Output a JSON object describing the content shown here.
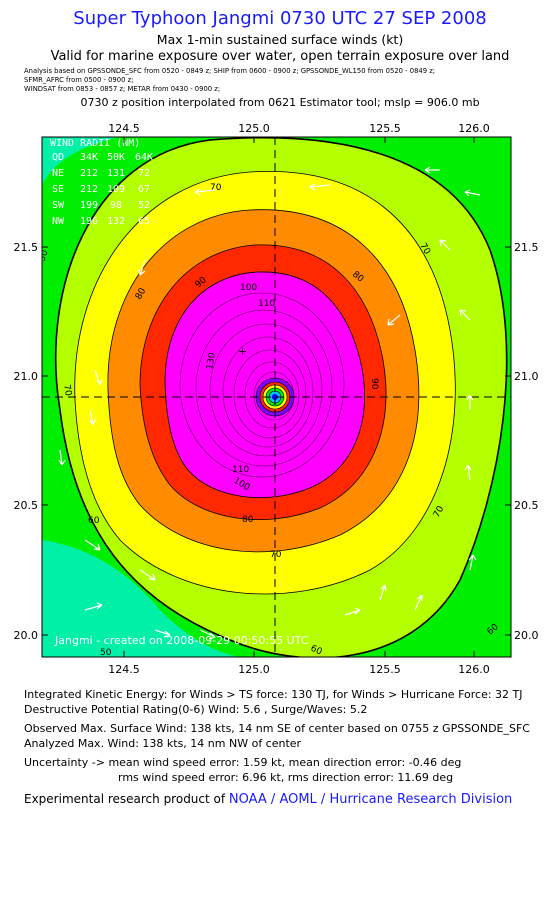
{
  "header": {
    "title": "Super Typhoon Jangmi 0730 UTC 27 SEP 2008",
    "subtitle1": "Max 1-min sustained surface winds (kt)",
    "subtitle2": "Valid for marine exposure over water, open terrain exposure over land",
    "analysis_lines": [
      "Analysis based on  GPSSONDE_SFC from 0520 - 0849 z;  SHIP from 0600 - 0900 z;  GPSSONDE_WL150 from 0520 - 0849 z;",
      "SFMR_AFRC from 0500 - 0900 z;",
      "WINDSAT from 0853 - 0857 z;   METAR from 0430 - 0900 z;"
    ],
    "position_note": "0730 z position interpolated from 0621 Estimator tool; mslp = 906.0 mb"
  },
  "map": {
    "x_ticks": [
      "124.5",
      "125.0",
      "125.5",
      "126.0"
    ],
    "y_ticks": [
      "21.5",
      "21.0",
      "20.5",
      "20.0"
    ],
    "center": {
      "lon": 125.17,
      "lat": 20.91
    },
    "wind_radii": {
      "title": "WIND RADII (NM)",
      "header": [
        "QD",
        "34K",
        "50K",
        "64K"
      ],
      "rows": [
        [
          "NE",
          "212",
          "131",
          "72"
        ],
        [
          "SE",
          "212",
          "109",
          "67"
        ],
        [
          "SW",
          "199",
          "98",
          "52"
        ],
        [
          "NW",
          "196",
          "132",
          "65"
        ]
      ]
    },
    "contour_labels": [
      "50",
      "60",
      "70",
      "80",
      "90",
      "100",
      "110",
      "130"
    ],
    "watermark": "Jangmi - created on 2008-09-29 00:50:55 UTC",
    "colors": {
      "lt_green": "#00ee00",
      "seafoam": "#00f0a8",
      "yellow_green": "#b4ff00",
      "yellow": "#ffff00",
      "orange": "#ff8c00",
      "red": "#ff2800",
      "magenta": "#ff00ff",
      "violet": "#c000ff",
      "center_blue": "#0000ff"
    }
  },
  "info": {
    "ike": "Integrated Kinetic Energy:  for Winds > TS force: 130 TJ,  for Winds > Hurricane Force: 32 TJ",
    "dpr": "Destructive Potential Rating(0-6)   Wind: 5.6 , Surge/Waves: 5.2",
    "obs": "Observed Max. Surface Wind: 138 kts, 14 nm SE of center based on 0755 z GPSSONDE_SFC",
    "analyzed": "Analyzed Max. Wind: 138 kts, 14 nm NW of center",
    "unc1": "Uncertainty -> mean wind speed error: 1.59 kt,   mean direction error:  -0.46 deg",
    "unc2": "rms wind speed error: 6.96 kt,   rms direction error: 11.69 deg",
    "credit_prefix": "Experimental research product of ",
    "credit_org": "NOAA / AOML / Hurricane Research Division"
  }
}
